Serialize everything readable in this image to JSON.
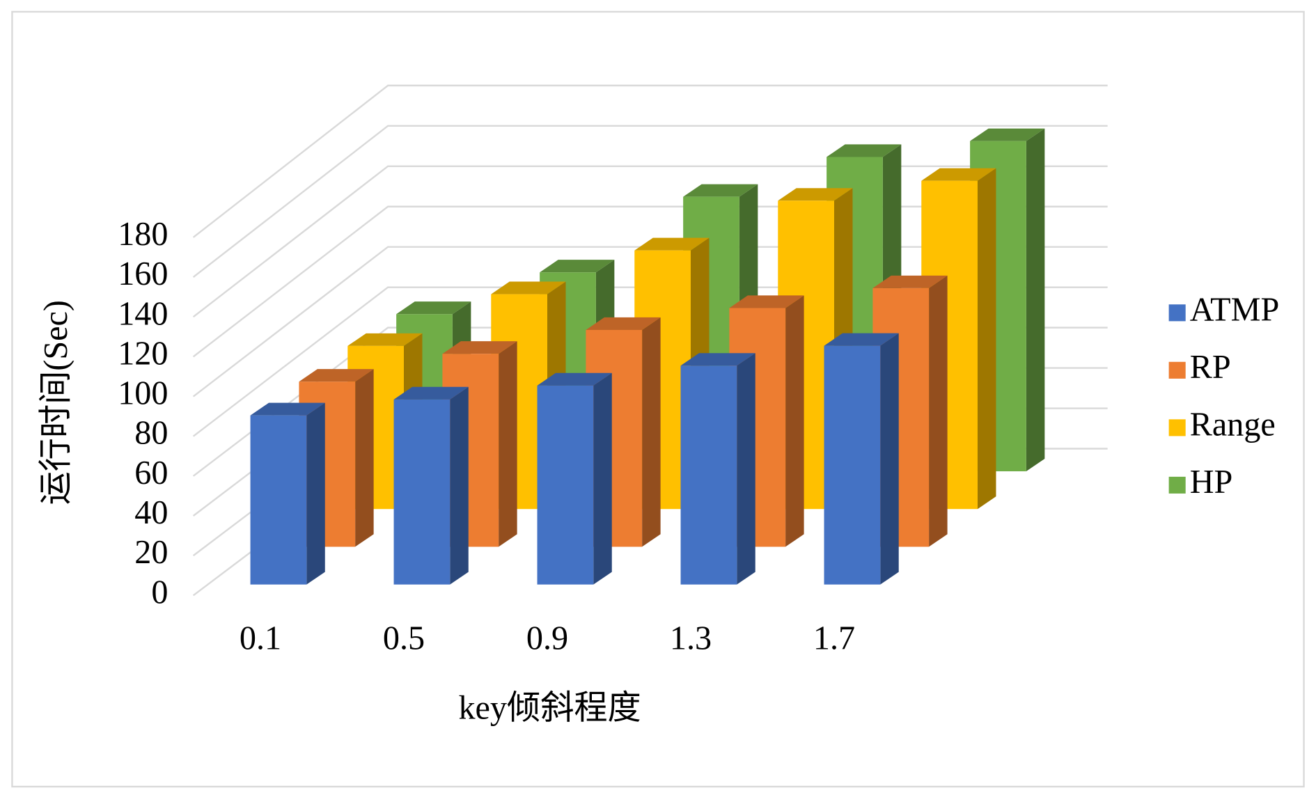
{
  "chart_data": {
    "type": "bar3d",
    "x_label": "key倾斜程度",
    "y_label": "运行时间(Sec)",
    "categories": [
      "0.1",
      "0.5",
      "0.9",
      "1.3",
      "1.7"
    ],
    "series": [
      {
        "name": "ATMP",
        "color": "#4472c4",
        "values": [
          85,
          93,
          100,
          110,
          120
        ]
      },
      {
        "name": "RP",
        "color": "#ed7d31",
        "values": [
          83,
          97,
          109,
          120,
          130
        ]
      },
      {
        "name": "Range",
        "color": "#ffc000",
        "values": [
          82,
          108,
          130,
          155,
          165
        ]
      },
      {
        "name": "HP",
        "color": "#70ad47",
        "values": [
          79,
          100,
          138,
          158,
          166
        ]
      }
    ],
    "ylim": [
      0,
      180
    ],
    "yticks": [
      0,
      20,
      40,
      60,
      80,
      100,
      120,
      140,
      160,
      180
    ],
    "grid": true,
    "legend": "right"
  }
}
